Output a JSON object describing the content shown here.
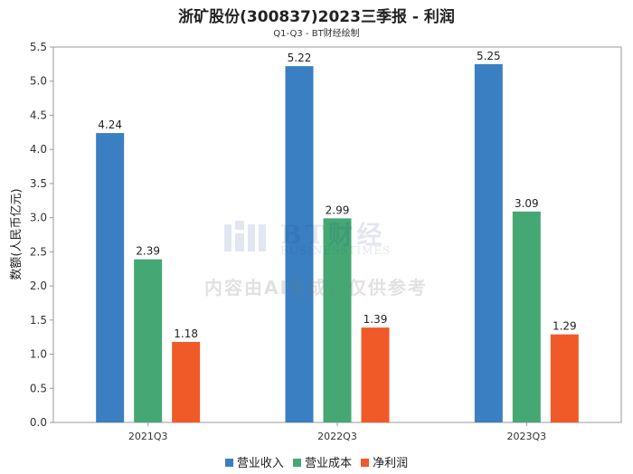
{
  "chart_data": {
    "type": "bar",
    "title": "浙矿股份(300837)2023三季报 - 利润",
    "subtitle": "Q1-Q3 - BT财经绘制",
    "ylabel": "数额(人民币亿元)",
    "xlabel": "",
    "categories": [
      "2021Q3",
      "2022Q3",
      "2023Q3"
    ],
    "ylim": [
      0,
      5.5
    ],
    "yticks": [
      "0.0",
      "0.5",
      "1.0",
      "1.5",
      "2.0",
      "2.5",
      "3.0",
      "3.5",
      "4.0",
      "4.5",
      "5.0",
      "5.5"
    ],
    "grid": false,
    "legend_position": "bottom",
    "series": [
      {
        "name": "营业收入",
        "values": [
          4.24,
          5.22,
          5.25
        ],
        "labels": [
          "4.24",
          "5.22",
          "5.25"
        ],
        "color": "#3a7fc1"
      },
      {
        "name": "营业成本",
        "values": [
          2.39,
          2.99,
          3.09
        ],
        "labels": [
          "2.39",
          "2.99",
          "3.09"
        ],
        "color": "#45a874"
      },
      {
        "name": "净利润",
        "values": [
          1.18,
          1.39,
          1.29
        ],
        "labels": [
          "1.18",
          "1.39",
          "1.29"
        ],
        "color": "#f05a28"
      }
    ]
  },
  "watermark": {
    "logo_text": "BT财经",
    "logo_subtext": "BUSINESSTIMES",
    "notice": "内容由AI生成，仅供参考"
  }
}
